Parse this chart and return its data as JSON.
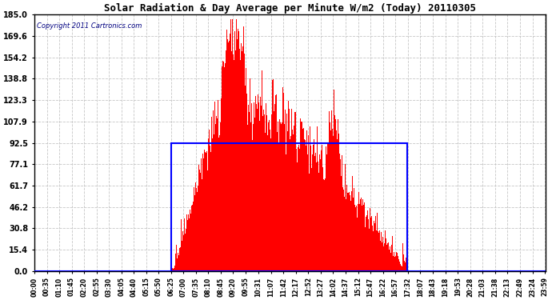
{
  "title": "Solar Radiation & Day Average per Minute W/m2 (Today) 20110305",
  "copyright": "Copyright 2011 Cartronics.com",
  "ymax": 185.0,
  "ymin": 0.0,
  "yticks": [
    0.0,
    15.4,
    30.8,
    46.2,
    61.7,
    77.1,
    92.5,
    107.9,
    123.3,
    138.8,
    154.2,
    169.6,
    185.0
  ],
  "bg_color": "#ffffff",
  "bar_color": "#ff0000",
  "grid_color": "#c0c0c0",
  "title_color": "#000000",
  "box_color": "#0000ff",
  "total_minutes": 1440,
  "sunrise_minute": 385,
  "sunset_minute": 1052,
  "peak_minute": 560,
  "peak_value": 182.0,
  "day_avg_value": 92.5,
  "xtick_labels": [
    "00:00",
    "00:35",
    "01:10",
    "01:45",
    "02:20",
    "02:55",
    "03:30",
    "04:05",
    "04:40",
    "05:15",
    "05:50",
    "06:25",
    "07:00",
    "07:35",
    "08:10",
    "08:45",
    "09:20",
    "09:55",
    "10:31",
    "11:07",
    "11:42",
    "12:17",
    "12:52",
    "13:27",
    "14:02",
    "14:37",
    "15:12",
    "15:47",
    "16:22",
    "16:57",
    "17:32",
    "18:07",
    "18:43",
    "19:18",
    "19:53",
    "20:28",
    "21:03",
    "21:38",
    "22:13",
    "22:49",
    "23:24",
    "23:59"
  ],
  "xtick_minutes": [
    0,
    35,
    70,
    105,
    140,
    175,
    210,
    245,
    280,
    315,
    350,
    385,
    420,
    455,
    490,
    525,
    560,
    595,
    631,
    667,
    702,
    737,
    772,
    807,
    842,
    877,
    912,
    947,
    982,
    1017,
    1052,
    1087,
    1123,
    1158,
    1193,
    1228,
    1263,
    1298,
    1333,
    1369,
    1404,
    1439
  ]
}
